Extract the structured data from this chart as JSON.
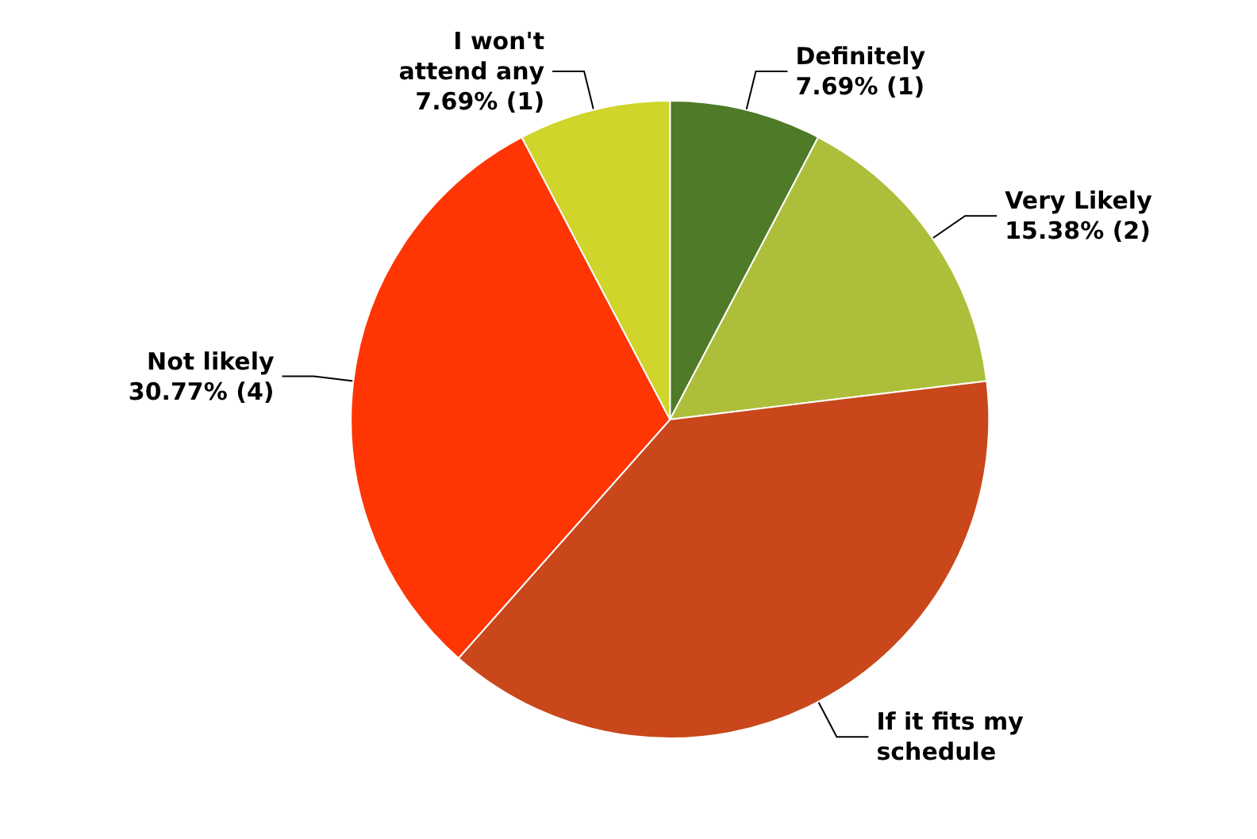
{
  "chart_data": {
    "type": "pie",
    "categories": [
      "Definitely",
      "Very Likely",
      "If it fits my schedule",
      "Not likely",
      "I won't attend any"
    ],
    "values": [
      7.69,
      15.38,
      38.46,
      30.77,
      7.69
    ],
    "colors": [
      "#4f7a28",
      "#adbf3a",
      "#c9471b",
      "#ff3503",
      "#cfd52a"
    ],
    "value_labels": [
      "7.69% (1)",
      "15.38% (2)",
      null,
      "30.77% (4)",
      "7.69% (1)"
    ],
    "legend": false
  }
}
